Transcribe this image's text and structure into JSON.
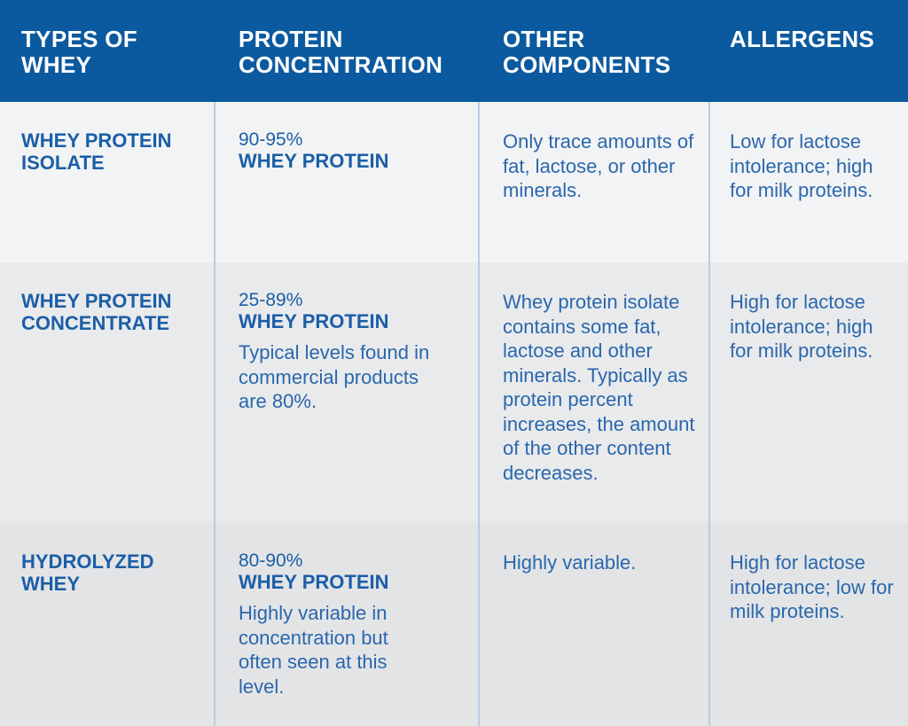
{
  "table": {
    "header": [
      "TYPES OF WHEY",
      "PROTEIN CONCENTRATION",
      "OTHER COMPONENTS",
      "ALLERGENS"
    ],
    "rows": [
      {
        "type": "WHEY PROTEIN ISOLATE",
        "range": "90-95%",
        "label": "WHEY PROTEIN",
        "components": "Only trace amounts of fat, lactose, or other minerals.",
        "allergens": "Low for lactose intolerance; high for milk proteins."
      },
      {
        "type": "WHEY PROTEIN CONCENTRATE",
        "range": "25-89%",
        "label": "WHEY PROTEIN",
        "note": "Typical levels found in commercial products are 80%.",
        "components": "Whey protein isolate contains some fat, lactose and other minerals. Typically as protein percent increases, the amount of the other content decreases.",
        "allergens": "High for lactose intolerance; high for milk proteins."
      },
      {
        "type": "HYDROLYZED WHEY",
        "range": "80-90%",
        "label": "WHEY PROTEIN",
        "note": "Highly variable in concentration but often seen at this level.",
        "components": "Highly variable.",
        "allergens": "High for lactose intolerance; low for milk proteins."
      }
    ]
  }
}
